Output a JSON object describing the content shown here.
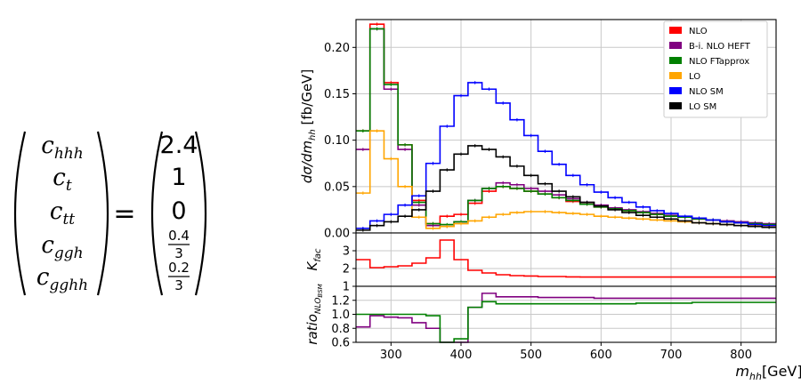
{
  "equation": {
    "lhs": [
      {
        "base": "c",
        "sub": "hhh"
      },
      {
        "base": "c",
        "sub": "t"
      },
      {
        "base": "c",
        "sub": "tt"
      },
      {
        "base": "c",
        "sub": "ggh"
      },
      {
        "base": "c",
        "sub": "gghh"
      }
    ],
    "equals": "=",
    "rhs": [
      {
        "value": "2.4"
      },
      {
        "value": "1"
      },
      {
        "value": "0"
      },
      {
        "num": "0.4",
        "den": "3"
      },
      {
        "num": "0.2",
        "den": "3"
      }
    ]
  },
  "chart_data": [
    {
      "type": "line",
      "drawstyle": "steps",
      "ylabel": "dσ/dm_hh [fb/GeV]",
      "ylim": [
        0,
        0.23
      ],
      "yticks": [
        "0.00",
        "0.05",
        "0.10",
        "0.15",
        "0.20"
      ],
      "xlim": [
        250,
        850
      ],
      "grid": true,
      "legend": {
        "placement": "top-right"
      },
      "x_edges": [
        250,
        270,
        290,
        310,
        330,
        350,
        370,
        390,
        410,
        430,
        450,
        470,
        490,
        510,
        530,
        550,
        570,
        590,
        610,
        630,
        650,
        670,
        690,
        710,
        730,
        750,
        770,
        790,
        810,
        830,
        850
      ],
      "series": [
        {
          "name": "NLO",
          "color": "#ff0000",
          "values": [
            0.11,
            0.225,
            0.162,
            0.095,
            0.035,
            0.01,
            0.018,
            0.02,
            0.032,
            0.045,
            0.05,
            0.048,
            0.045,
            0.042,
            0.038,
            0.034,
            0.031,
            0.028,
            0.026,
            0.024,
            0.022,
            0.02,
            0.018,
            0.017,
            0.015,
            0.014,
            0.012,
            0.011,
            0.01,
            0.009
          ]
        },
        {
          "name": "B-i. NLO HEFT",
          "color": "#800080",
          "values": [
            0.09,
            0.22,
            0.155,
            0.09,
            0.03,
            0.008,
            0.007,
            0.012,
            0.035,
            0.048,
            0.054,
            0.052,
            0.048,
            0.045,
            0.041,
            0.037,
            0.033,
            0.03,
            0.027,
            0.025,
            0.023,
            0.021,
            0.019,
            0.017,
            0.016,
            0.014,
            0.013,
            0.012,
            0.011,
            0.01
          ]
        },
        {
          "name": "NLO FTapprox",
          "color": "#008000",
          "values": [
            0.11,
            0.22,
            0.16,
            0.095,
            0.033,
            0.01,
            0.009,
            0.012,
            0.035,
            0.048,
            0.05,
            0.048,
            0.045,
            0.042,
            0.038,
            0.035,
            0.031,
            0.028,
            0.026,
            0.024,
            0.022,
            0.02,
            0.018,
            0.017,
            0.015,
            0.014,
            0.012,
            0.011,
            0.01,
            0.009
          ]
        },
        {
          "name": "LO",
          "color": "#ffa500",
          "values": [
            0.043,
            0.11,
            0.08,
            0.05,
            0.017,
            0.005,
            0.007,
            0.01,
            0.013,
            0.017,
            0.02,
            0.022,
            0.023,
            0.023,
            0.022,
            0.021,
            0.02,
            0.018,
            0.017,
            0.016,
            0.015,
            0.014,
            0.013,
            0.012,
            0.011,
            0.01,
            0.009,
            0.008,
            0.008,
            0.007
          ]
        },
        {
          "name": "NLO SM",
          "color": "#0000ff",
          "values": [
            0.005,
            0.013,
            0.02,
            0.03,
            0.04,
            0.075,
            0.115,
            0.148,
            0.162,
            0.155,
            0.14,
            0.122,
            0.105,
            0.088,
            0.074,
            0.062,
            0.052,
            0.044,
            0.038,
            0.033,
            0.028,
            0.024,
            0.021,
            0.018,
            0.016,
            0.014,
            0.012,
            0.011,
            0.009,
            0.008
          ]
        },
        {
          "name": "LO SM",
          "color": "#000000",
          "values": [
            0.003,
            0.008,
            0.012,
            0.018,
            0.025,
            0.045,
            0.068,
            0.085,
            0.094,
            0.09,
            0.082,
            0.072,
            0.062,
            0.053,
            0.045,
            0.039,
            0.033,
            0.029,
            0.025,
            0.022,
            0.019,
            0.017,
            0.015,
            0.013,
            0.011,
            0.01,
            0.009,
            0.008,
            0.007,
            0.006
          ]
        }
      ]
    },
    {
      "type": "line",
      "drawstyle": "steps",
      "ylabel": "K_fac",
      "ylim": [
        1,
        4
      ],
      "yticks": [
        "1",
        "2",
        "3"
      ],
      "xlim": [
        250,
        850
      ],
      "grid": true,
      "x_edges": [
        250,
        270,
        290,
        310,
        330,
        350,
        370,
        390,
        410,
        430,
        450,
        470,
        490,
        510,
        530,
        550,
        570,
        590,
        610,
        630,
        650,
        670,
        690,
        710,
        730,
        750,
        770,
        790,
        810,
        830,
        850
      ],
      "series": [
        {
          "name": "",
          "color": "#ff0000",
          "values": [
            2.5,
            2.05,
            2.1,
            2.15,
            2.3,
            2.6,
            3.6,
            2.5,
            1.9,
            1.75,
            1.65,
            1.6,
            1.58,
            1.55,
            1.55,
            1.53,
            1.52,
            1.52,
            1.52,
            1.52,
            1.52,
            1.52,
            1.52,
            1.52,
            1.52,
            1.52,
            1.52,
            1.52,
            1.52,
            1.52
          ]
        }
      ]
    },
    {
      "type": "line",
      "drawstyle": "steps",
      "ylabel": "ratio_NLO_BSM",
      "xlabel": "m_hh[GeV]",
      "ylim": [
        0.6,
        1.4
      ],
      "yticks": [
        "0.6",
        "0.8",
        "1.0",
        "1.2"
      ],
      "xlim": [
        250,
        850
      ],
      "xticks": [
        "300",
        "400",
        "500",
        "600",
        "700",
        "800"
      ],
      "grid": true,
      "x_edges": [
        250,
        270,
        290,
        310,
        330,
        350,
        370,
        390,
        410,
        430,
        450,
        470,
        490,
        510,
        530,
        550,
        570,
        590,
        610,
        630,
        650,
        670,
        690,
        710,
        730,
        750,
        770,
        790,
        810,
        830,
        850
      ],
      "series": [
        {
          "name": "",
          "color": "#800080",
          "values": [
            0.82,
            0.98,
            0.96,
            0.95,
            0.88,
            0.8,
            0.4,
            0.6,
            1.1,
            1.3,
            1.25,
            1.25,
            1.25,
            1.24,
            1.24,
            1.24,
            1.24,
            1.23,
            1.23,
            1.23,
            1.23,
            1.23,
            1.23,
            1.23,
            1.23,
            1.23,
            1.23,
            1.23,
            1.23,
            1.23
          ]
        },
        {
          "name": "",
          "color": "#008000",
          "values": [
            1.0,
            1.0,
            1.0,
            1.0,
            1.0,
            0.98,
            0.5,
            0.65,
            1.1,
            1.18,
            1.15,
            1.15,
            1.15,
            1.15,
            1.15,
            1.15,
            1.15,
            1.15,
            1.15,
            1.15,
            1.16,
            1.16,
            1.16,
            1.16,
            1.17,
            1.17,
            1.17,
            1.17,
            1.17,
            1.17
          ]
        }
      ]
    }
  ]
}
